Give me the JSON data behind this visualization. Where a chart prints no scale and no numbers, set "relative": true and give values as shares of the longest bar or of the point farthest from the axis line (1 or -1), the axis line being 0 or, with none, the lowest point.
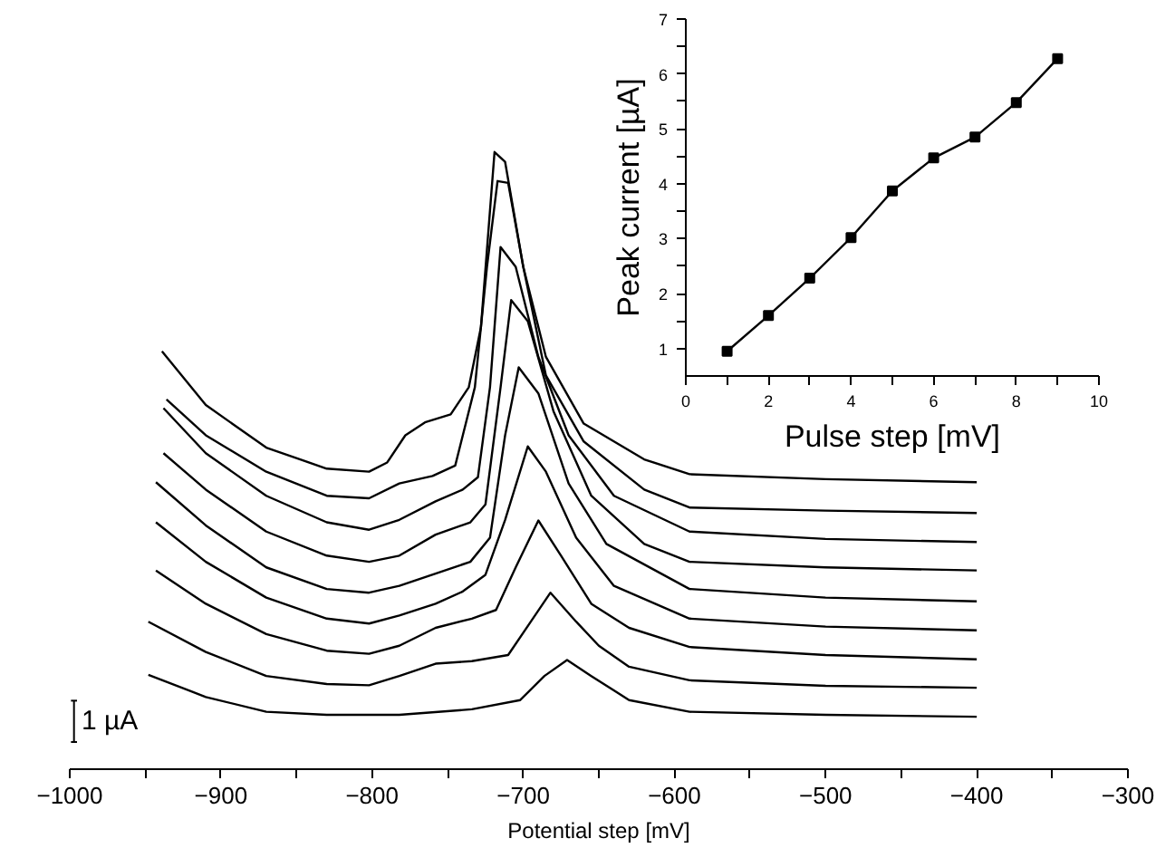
{
  "chart_data": [
    {
      "type": "line",
      "relative": true,
      "xlabel": "Potential step [mV]",
      "annotations": [
        "1 µA"
      ],
      "xlim": [
        -1000,
        -300
      ],
      "xticks": [
        {
          "value": -1000,
          "label": "−1000"
        },
        {
          "value": -950,
          "label": null
        },
        {
          "value": -900,
          "label": "−900"
        },
        {
          "value": -850,
          "label": null
        },
        {
          "value": -800,
          "label": "−800"
        },
        {
          "value": -750,
          "label": null
        },
        {
          "value": -700,
          "label": "−700"
        },
        {
          "value": -650,
          "label": null
        },
        {
          "value": -600,
          "label": "−600"
        },
        {
          "value": -550,
          "label": null
        },
        {
          "value": -500,
          "label": "−500"
        },
        {
          "value": -450,
          "label": null
        },
        {
          "value": -400,
          "label": "−400"
        },
        {
          "value": -350,
          "label": null
        },
        {
          "value": -300,
          "label": "−300"
        }
      ],
      "tick_labels": "x",
      "grid": false,
      "series": [
        {
          "color": "#000000",
          "x": [
            -948,
            -910,
            -870,
            -830,
            -782,
            -734,
            -702,
            -686,
            -671,
            -655,
            -630,
            -590,
            -500,
            -400
          ],
          "values": [
            0.153,
            0.117,
            0.093,
            0.088,
            0.088,
            0.097,
            0.112,
            0.151,
            0.177,
            0.151,
            0.112,
            0.093,
            0.088,
            0.085
          ]
        },
        {
          "color": "#000000",
          "x": [
            -948,
            -910,
            -870,
            -830,
            -802,
            -782,
            -758,
            -734,
            -710,
            -695,
            -682,
            -665,
            -650,
            -630,
            -590,
            -500,
            -400
          ],
          "values": [
            0.239,
            0.19,
            0.151,
            0.138,
            0.136,
            0.151,
            0.171,
            0.175,
            0.185,
            0.239,
            0.286,
            0.239,
            0.2,
            0.166,
            0.144,
            0.135,
            0.132
          ]
        },
        {
          "color": "#000000",
          "x": [
            -943,
            -910,
            -870,
            -830,
            -802,
            -782,
            -758,
            -734,
            -718,
            -705,
            -690,
            -675,
            -655,
            -630,
            -590,
            -500,
            -400
          ],
          "values": [
            0.322,
            0.268,
            0.219,
            0.192,
            0.187,
            0.2,
            0.229,
            0.244,
            0.258,
            0.327,
            0.403,
            0.346,
            0.268,
            0.229,
            0.198,
            0.185,
            0.178
          ]
        },
        {
          "color": "#000000",
          "x": [
            -943,
            -910,
            -870,
            -830,
            -802,
            -782,
            -758,
            -740,
            -725,
            -712,
            -697,
            -685,
            -665,
            -640,
            -590,
            -500,
            -400
          ],
          "values": [
            0.4,
            0.336,
            0.278,
            0.244,
            0.236,
            0.249,
            0.268,
            0.288,
            0.315,
            0.404,
            0.523,
            0.482,
            0.375,
            0.297,
            0.244,
            0.231,
            0.225
          ]
        },
        {
          "color": "#000000",
          "x": [
            -943,
            -910,
            -870,
            -830,
            -802,
            -782,
            -758,
            -735,
            -722,
            -712,
            -703,
            -690,
            -670,
            -645,
            -590,
            -500,
            -400
          ],
          "values": [
            0.465,
            0.395,
            0.327,
            0.292,
            0.286,
            0.297,
            0.317,
            0.336,
            0.375,
            0.541,
            0.651,
            0.609,
            0.463,
            0.365,
            0.292,
            0.278,
            0.272
          ]
        },
        {
          "color": "#000000",
          "x": [
            -938,
            -910,
            -870,
            -830,
            -802,
            -782,
            -758,
            -735,
            -725,
            -715,
            -708,
            -697,
            -680,
            -655,
            -620,
            -590,
            -500,
            -400
          ],
          "values": [
            0.512,
            0.453,
            0.385,
            0.346,
            0.336,
            0.346,
            0.38,
            0.4,
            0.429,
            0.619,
            0.76,
            0.726,
            0.58,
            0.443,
            0.365,
            0.336,
            0.327,
            0.322
          ]
        },
        {
          "color": "#000000",
          "x": [
            -938,
            -910,
            -870,
            -830,
            -802,
            -782,
            -758,
            -740,
            -730,
            -722,
            -715,
            -705,
            -690,
            -670,
            -640,
            -590,
            -500,
            -400
          ],
          "values": [
            0.585,
            0.512,
            0.443,
            0.4,
            0.388,
            0.404,
            0.434,
            0.453,
            0.473,
            0.619,
            0.846,
            0.814,
            0.668,
            0.541,
            0.443,
            0.385,
            0.373,
            0.368
          ]
        },
        {
          "color": "#000000",
          "x": [
            -936,
            -910,
            -870,
            -830,
            -802,
            -782,
            -760,
            -745,
            -732,
            -724,
            -717,
            -710,
            -700,
            -685,
            -660,
            -620,
            -590,
            -500,
            -400
          ],
          "values": [
            0.599,
            0.541,
            0.482,
            0.443,
            0.439,
            0.463,
            0.475,
            0.492,
            0.619,
            0.814,
            0.953,
            0.95,
            0.814,
            0.638,
            0.531,
            0.453,
            0.424,
            0.419,
            0.415
          ]
        },
        {
          "color": "#000000",
          "x": [
            -939,
            -910,
            -870,
            -830,
            -802,
            -790,
            -778,
            -765,
            -748,
            -736,
            -728,
            -719,
            -712,
            -700,
            -685,
            -660,
            -620,
            -590,
            -500,
            -400
          ],
          "values": [
            0.677,
            0.59,
            0.521,
            0.487,
            0.482,
            0.497,
            0.541,
            0.562,
            0.575,
            0.619,
            0.716,
            1.0,
            0.984,
            0.814,
            0.668,
            0.56,
            0.502,
            0.478,
            0.47,
            0.465
          ]
        }
      ]
    },
    {
      "type": "line",
      "marker": "square",
      "xlabel": "Pulse step [mV]",
      "ylabel": "Peak current [µA]",
      "xlim": [
        0,
        10
      ],
      "ylim": [
        0.5,
        7
      ],
      "xticks": [
        0,
        {
          "value": 1,
          "label": null
        },
        2,
        {
          "value": 3,
          "label": null
        },
        4,
        {
          "value": 5,
          "label": null
        },
        6,
        {
          "value": 7,
          "label": null
        },
        8,
        {
          "value": 9,
          "label": null
        },
        10
      ],
      "yticks": [
        1,
        {
          "value": 1.5,
          "label": null
        },
        2,
        {
          "value": 2.5,
          "label": null
        },
        3,
        {
          "value": 3.5,
          "label": null
        },
        4,
        {
          "value": 4.5,
          "label": null
        },
        5,
        {
          "value": 5.5,
          "label": null
        },
        6,
        {
          "value": 6.5,
          "label": null
        },
        7
      ],
      "grid": false,
      "series": [
        {
          "color": "#000000",
          "x": [
            1,
            2,
            3,
            4,
            5,
            6,
            7,
            8,
            9
          ],
          "values": [
            0.95,
            1.6,
            2.28,
            3.02,
            3.87,
            4.47,
            4.85,
            5.48,
            6.28
          ]
        }
      ]
    }
  ]
}
